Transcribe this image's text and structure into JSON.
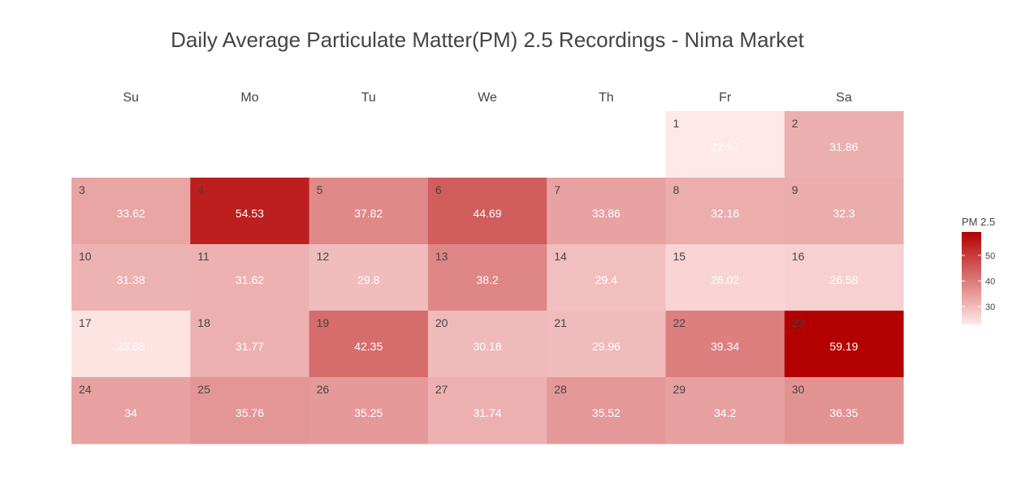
{
  "chart_data": {
    "type": "heatmap",
    "title": "Daily Average Particulate Matter(PM) 2.5 Recordings - Nima Market",
    "weekdays": [
      "Su",
      "Mo",
      "Tu",
      "We",
      "Th",
      "Fr",
      "Sa"
    ],
    "first_weekday_index": 5,
    "days": [
      {
        "day": 1,
        "value": 22.97
      },
      {
        "day": 2,
        "value": 31.86
      },
      {
        "day": 3,
        "value": 33.62
      },
      {
        "day": 4,
        "value": 54.53
      },
      {
        "day": 5,
        "value": 37.82
      },
      {
        "day": 6,
        "value": 44.69
      },
      {
        "day": 7,
        "value": 33.86
      },
      {
        "day": 8,
        "value": 32.16
      },
      {
        "day": 9,
        "value": 32.3
      },
      {
        "day": 10,
        "value": 31.38
      },
      {
        "day": 11,
        "value": 31.62
      },
      {
        "day": 12,
        "value": 29.8
      },
      {
        "day": 13,
        "value": 38.2
      },
      {
        "day": 14,
        "value": 29.4
      },
      {
        "day": 15,
        "value": 26.02
      },
      {
        "day": 16,
        "value": 26.58
      },
      {
        "day": 17,
        "value": 23.68
      },
      {
        "day": 18,
        "value": 31.77
      },
      {
        "day": 19,
        "value": 42.35
      },
      {
        "day": 20,
        "value": 30.18
      },
      {
        "day": 21,
        "value": 29.96
      },
      {
        "day": 22,
        "value": 39.34
      },
      {
        "day": 23,
        "value": 59.19
      },
      {
        "day": 24,
        "value": 34
      },
      {
        "day": 25,
        "value": 35.76
      },
      {
        "day": 26,
        "value": 35.25
      },
      {
        "day": 27,
        "value": 31.74
      },
      {
        "day": 28,
        "value": 35.52
      },
      {
        "day": 29,
        "value": 34.2
      },
      {
        "day": 30,
        "value": 36.35
      }
    ],
    "legend": {
      "title": "PM 2.5",
      "ticks": [
        30,
        40,
        50
      ],
      "range": [
        22.97,
        59.19
      ],
      "placement": "right"
    },
    "colors": {
      "low": "#ffe8e8",
      "high": "#b30000"
    }
  }
}
